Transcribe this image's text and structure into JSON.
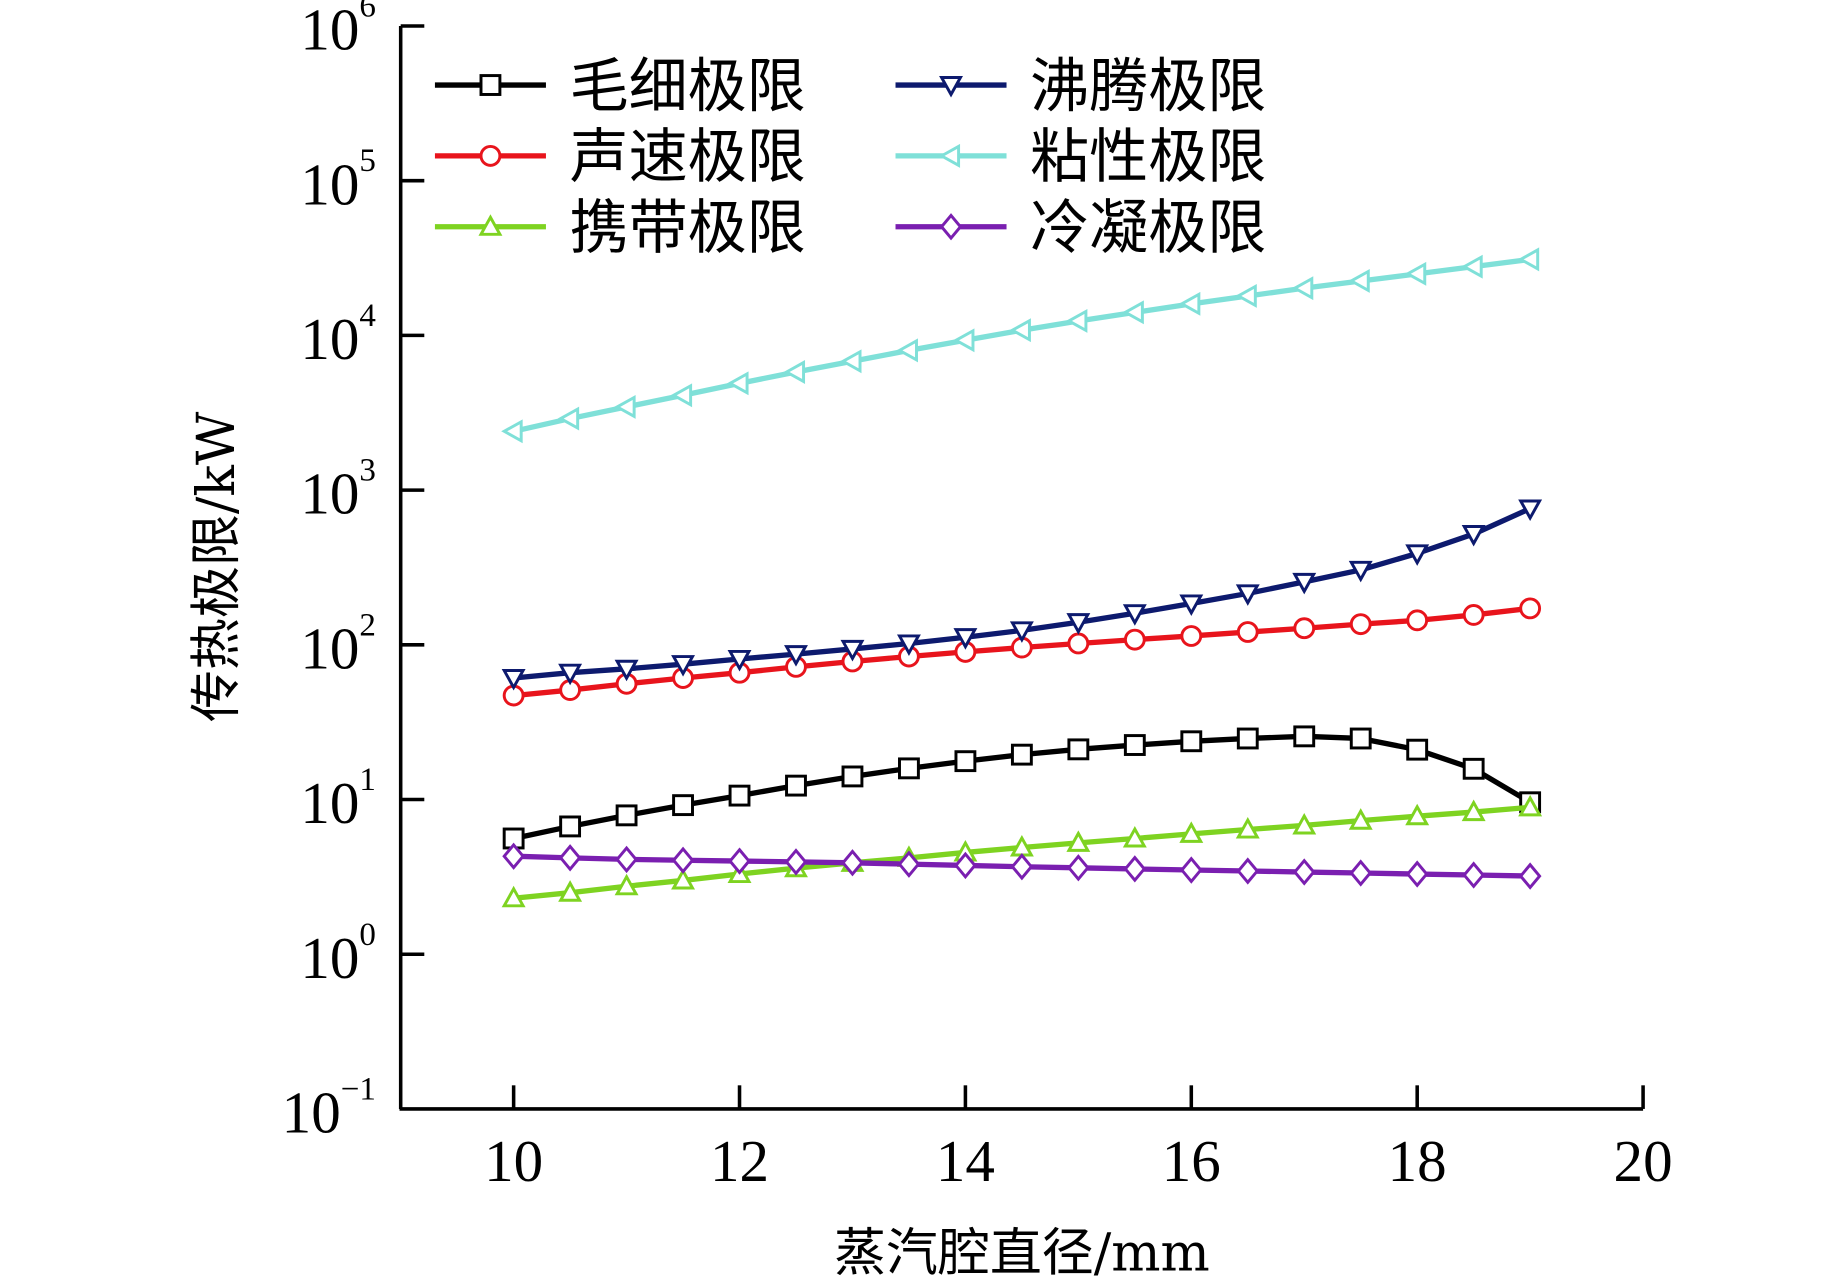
{
  "chart_data": {
    "type": "line",
    "title": "",
    "xlabel": "蒸汽腔直径/mm",
    "ylabel": "传热极限/kW",
    "xlim": [
      9,
      20
    ],
    "ylim": [
      0.1,
      1000000
    ],
    "yscale": "log",
    "grid": false,
    "legend_position": "top-left",
    "x_ticks": [
      {
        "value": 10,
        "label": "10"
      },
      {
        "value": 12,
        "label": "12"
      },
      {
        "value": 14,
        "label": "14"
      },
      {
        "value": 16,
        "label": "16"
      },
      {
        "value": 18,
        "label": "18"
      },
      {
        "value": 20,
        "label": "20"
      }
    ],
    "y_ticks": [
      {
        "value": 0.1,
        "base": "10",
        "exp": "−1"
      },
      {
        "value": 1,
        "base": "10",
        "exp": "0"
      },
      {
        "value": 10,
        "base": "10",
        "exp": "1"
      },
      {
        "value": 100,
        "base": "10",
        "exp": "2"
      },
      {
        "value": 1000,
        "base": "10",
        "exp": "3"
      },
      {
        "value": 10000,
        "base": "10",
        "exp": "4"
      },
      {
        "value": 100000,
        "base": "10",
        "exp": "5"
      },
      {
        "value": 1000000,
        "base": "10",
        "exp": "6"
      }
    ],
    "x": [
      10,
      10.5,
      11,
      11.5,
      12,
      12.5,
      13,
      13.5,
      14,
      14.5,
      15,
      15.5,
      16,
      16.5,
      17,
      17.5,
      18,
      18.5,
      19
    ],
    "series": [
      {
        "name": "毛细极限",
        "color": "#000000",
        "marker": "square",
        "values": [
          5.6,
          6.7,
          7.9,
          9.2,
          10.6,
          12.3,
          14.1,
          15.9,
          17.7,
          19.5,
          21.1,
          22.5,
          23.8,
          24.8,
          25.6,
          24.8,
          21.0,
          15.8,
          9.6
        ]
      },
      {
        "name": "声速极限",
        "color": "#e8141c",
        "marker": "circle",
        "values": [
          47,
          51,
          56,
          61,
          66,
          72,
          78,
          84,
          90,
          96,
          102,
          108,
          114,
          121,
          128,
          136,
          144,
          156,
          172
        ]
      },
      {
        "name": "携带极限",
        "color": "#7ed321",
        "marker": "triangle-up",
        "values": [
          2.3,
          2.5,
          2.75,
          3.0,
          3.3,
          3.6,
          3.9,
          4.2,
          4.55,
          4.9,
          5.25,
          5.6,
          6.0,
          6.4,
          6.8,
          7.3,
          7.8,
          8.3,
          8.9
        ]
      },
      {
        "name": "沸腾极限",
        "color": "#0d1a6e",
        "marker": "triangle-down",
        "values": [
          61,
          66,
          70,
          75,
          81,
          87,
          94,
          102,
          112,
          124,
          140,
          160,
          185,
          215,
          255,
          305,
          390,
          520,
          760
        ]
      },
      {
        "name": "粘性极限",
        "color": "#7fe0d8",
        "marker": "triangle-left",
        "values": [
          2400,
          2900,
          3450,
          4100,
          4900,
          5800,
          6800,
          8000,
          9300,
          10800,
          12400,
          14100,
          16000,
          18000,
          20200,
          22500,
          25000,
          27800,
          31000
        ]
      },
      {
        "name": "冷凝极限",
        "color": "#7a1fb0",
        "marker": "diamond",
        "values": [
          4.3,
          4.2,
          4.1,
          4.05,
          4.0,
          3.95,
          3.9,
          3.82,
          3.75,
          3.68,
          3.62,
          3.56,
          3.5,
          3.45,
          3.4,
          3.35,
          3.3,
          3.25,
          3.2
        ]
      }
    ]
  }
}
